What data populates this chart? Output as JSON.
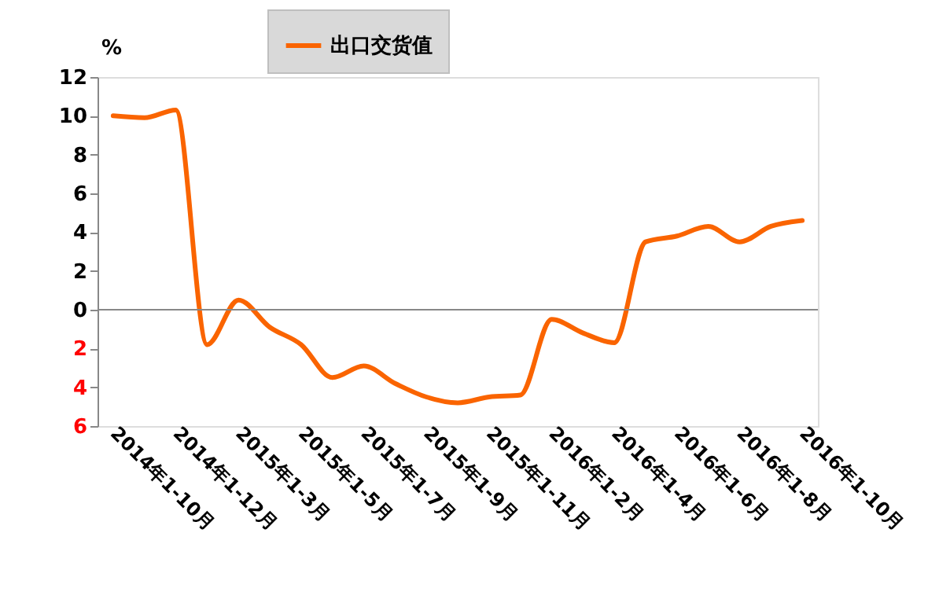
{
  "chart_data": {
    "type": "line",
    "ylabel": "%",
    "categories": [
      "2014年1-10月",
      null,
      "2014年1-12月",
      null,
      "2015年1-3月",
      null,
      "2015年1-5月",
      null,
      "2015年1-7月",
      null,
      "2015年1-9月",
      null,
      "2015年1-11月",
      null,
      "2016年1-2月",
      null,
      "2016年1-4月",
      null,
      "2016年1-6月",
      null,
      "2016年1-8月",
      null,
      "2016年1-10月"
    ],
    "series": [
      {
        "name": "出口交货值",
        "color": "#fa6400",
        "values": [
          10.0,
          9.9,
          10.3,
          -1.8,
          0.5,
          -0.9,
          -1.8,
          -3.5,
          -2.9,
          -3.8,
          -4.5,
          -4.8,
          -4.5,
          -4.4,
          -0.5,
          -1.2,
          -1.7,
          3.5,
          3.8,
          4.3,
          3.5,
          4.3,
          4.6
        ]
      }
    ],
    "ylim": [
      -6,
      12
    ],
    "yticks": [
      {
        "value": -6,
        "label": "6"
      },
      {
        "value": -4,
        "label": "4"
      },
      {
        "value": -2,
        "label": "2"
      },
      0,
      2,
      4,
      6,
      8,
      10,
      12
    ],
    "legend": "top",
    "line_style": "solid"
  }
}
